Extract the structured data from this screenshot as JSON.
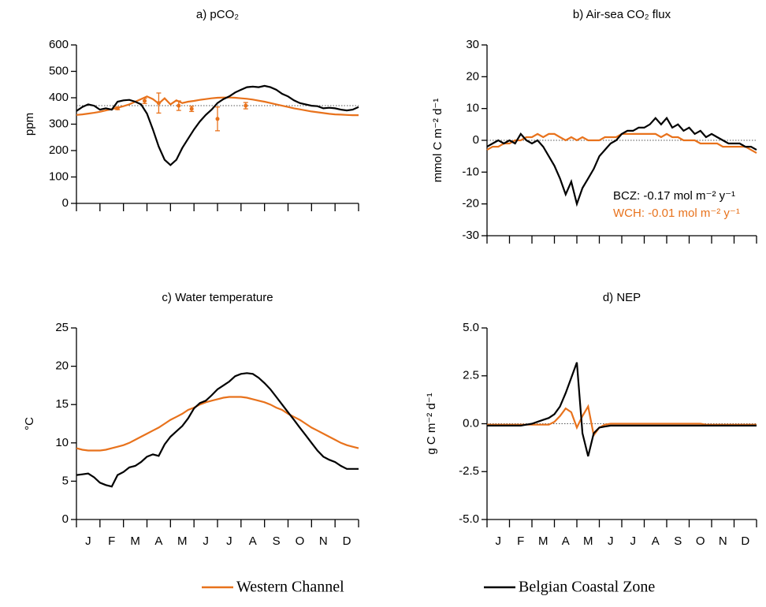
{
  "chart_data": [
    {
      "type": "line",
      "title": "a) pCO₂",
      "ylabel": "ppm",
      "x": [
        0,
        0.25,
        0.5,
        0.75,
        1,
        1.25,
        1.5,
        1.75,
        2,
        2.25,
        2.5,
        2.75,
        3,
        3.25,
        3.5,
        3.75,
        4,
        4.25,
        4.5,
        4.75,
        5,
        5.25,
        5.5,
        5.75,
        6,
        6.25,
        6.5,
        6.75,
        7,
        7.25,
        7.5,
        7.75,
        8,
        8.25,
        8.5,
        8.75,
        9,
        9.25,
        9.5,
        9.75,
        10,
        10.25,
        10.5,
        10.75,
        11,
        11.25,
        11.5,
        11.75,
        12
      ],
      "xlim": [
        0,
        12
      ],
      "xticks": [
        0,
        1,
        2,
        3,
        4,
        5,
        6,
        7,
        8,
        9,
        10,
        11,
        12
      ],
      "ylim": [
        0,
        600
      ],
      "yticks": [
        0,
        100,
        200,
        300,
        400,
        500,
        600
      ],
      "hline": 370,
      "series": [
        {
          "color": "#e8721c",
          "values": [
            335,
            337,
            340,
            343,
            347,
            352,
            357,
            362,
            368,
            375,
            385,
            395,
            405,
            395,
            378,
            398,
            375,
            390,
            380,
            385,
            388,
            392,
            395,
            398,
            400,
            401,
            401,
            400,
            398,
            396,
            393,
            389,
            385,
            380,
            375,
            370,
            365,
            360,
            356,
            352,
            348,
            345,
            342,
            339,
            337,
            336,
            335,
            334,
            334
          ]
        },
        {
          "color": "#000000",
          "values": [
            350,
            365,
            375,
            370,
            355,
            360,
            355,
            385,
            390,
            392,
            385,
            375,
            340,
            280,
            215,
            165,
            145,
            165,
            210,
            245,
            280,
            310,
            335,
            355,
            380,
            395,
            405,
            420,
            430,
            440,
            442,
            440,
            445,
            440,
            430,
            415,
            405,
            390,
            380,
            375,
            370,
            368,
            360,
            362,
            360,
            355,
            352,
            355,
            365
          ]
        }
      ],
      "error_points": {
        "color": "#e8721c",
        "x": [
          1.75,
          2.9,
          3.5,
          4.35,
          4.9,
          6.0,
          7.2
        ],
        "values": [
          360,
          388,
          380,
          370,
          358,
          320,
          370
        ],
        "errors": [
          5,
          10,
          38,
          18,
          10,
          45,
          12
        ]
      }
    },
    {
      "type": "line",
      "title": "b) Air-sea CO₂ flux",
      "ylabel": "mmol C m⁻² d⁻¹",
      "x": [
        0,
        0.25,
        0.5,
        0.75,
        1,
        1.25,
        1.5,
        1.75,
        2,
        2.25,
        2.5,
        2.75,
        3,
        3.25,
        3.5,
        3.75,
        4,
        4.25,
        4.5,
        4.75,
        5,
        5.25,
        5.5,
        5.75,
        6,
        6.25,
        6.5,
        6.75,
        7,
        7.25,
        7.5,
        7.75,
        8,
        8.25,
        8.5,
        8.75,
        9,
        9.25,
        9.5,
        9.75,
        10,
        10.25,
        10.5,
        10.75,
        11,
        11.25,
        11.5,
        11.75,
        12
      ],
      "xlim": [
        0,
        12
      ],
      "xticks": [
        0,
        1,
        2,
        3,
        4,
        5,
        6,
        7,
        8,
        9,
        10,
        11,
        12
      ],
      "ylim": [
        -30,
        30
      ],
      "yticks": [
        -30,
        -20,
        -10,
        0,
        10,
        20,
        30
      ],
      "hline": 0,
      "series": [
        {
          "color": "#e8721c",
          "values": [
            -3,
            -2,
            -2,
            -1,
            -1,
            0,
            0,
            1,
            1,
            2,
            1,
            2,
            2,
            1,
            0,
            1,
            0,
            1,
            0,
            0,
            0,
            1,
            1,
            1,
            2,
            2,
            2,
            2,
            2,
            2,
            2,
            1,
            2,
            1,
            1,
            0,
            0,
            0,
            -1,
            -1,
            -1,
            -1,
            -2,
            -2,
            -2,
            -2,
            -2,
            -3,
            -4
          ]
        },
        {
          "color": "#000000",
          "values": [
            -2,
            -1,
            0,
            -1,
            0,
            -1,
            2,
            0,
            -1,
            0,
            -2,
            -5,
            -8,
            -12,
            -17,
            -13,
            -20,
            -15,
            -12,
            -9,
            -5,
            -3,
            -1,
            0,
            2,
            3,
            3,
            4,
            4,
            5,
            7,
            5,
            7,
            4,
            5,
            3,
            4,
            2,
            3,
            1,
            2,
            1,
            0,
            -1,
            -1,
            -1,
            -2,
            -2,
            -3
          ]
        }
      ],
      "annotations": [
        {
          "text": "BCZ: -0.17 mol m⁻² y⁻¹",
          "color": "#000000"
        },
        {
          "text": "WCH: -0.01 mol m⁻² y⁻¹",
          "color": "#e8721c"
        }
      ]
    },
    {
      "type": "line",
      "title": "c) Water temperature",
      "ylabel": "°C",
      "x": [
        0,
        0.25,
        0.5,
        0.75,
        1,
        1.25,
        1.5,
        1.75,
        2,
        2.25,
        2.5,
        2.75,
        3,
        3.25,
        3.5,
        3.75,
        4,
        4.25,
        4.5,
        4.75,
        5,
        5.25,
        5.5,
        5.75,
        6,
        6.25,
        6.5,
        6.75,
        7,
        7.25,
        7.5,
        7.75,
        8,
        8.25,
        8.5,
        8.75,
        9,
        9.25,
        9.5,
        9.75,
        10,
        10.25,
        10.5,
        10.75,
        11,
        11.25,
        11.5,
        11.75,
        12
      ],
      "xlim": [
        0,
        12
      ],
      "xticks": [
        0,
        1,
        2,
        3,
        4,
        5,
        6,
        7,
        8,
        9,
        10,
        11,
        12
      ],
      "xtick_labels": [
        "J",
        "F",
        "M",
        "A",
        "M",
        "J",
        "J",
        "A",
        "S",
        "O",
        "N",
        "D"
      ],
      "ylim": [
        0,
        25
      ],
      "yticks": [
        0,
        5,
        10,
        15,
        20,
        25
      ],
      "series": [
        {
          "color": "#e8721c",
          "values": [
            9.3,
            9.1,
            9.0,
            9.0,
            9.0,
            9.1,
            9.3,
            9.5,
            9.7,
            10.0,
            10.4,
            10.8,
            11.2,
            11.6,
            12.0,
            12.5,
            13.0,
            13.4,
            13.8,
            14.3,
            14.6,
            15.0,
            15.3,
            15.5,
            15.7,
            15.9,
            16.0,
            16.0,
            16.0,
            15.9,
            15.7,
            15.5,
            15.3,
            15.0,
            14.6,
            14.3,
            13.8,
            13.4,
            13.0,
            12.5,
            12.0,
            11.6,
            11.2,
            10.8,
            10.4,
            10.0,
            9.7,
            9.5,
            9.3
          ]
        },
        {
          "color": "#000000",
          "values": [
            5.8,
            5.9,
            6.0,
            5.5,
            4.8,
            4.5,
            4.3,
            5.8,
            6.2,
            6.8,
            7.0,
            7.5,
            8.2,
            8.5,
            8.3,
            9.8,
            10.8,
            11.5,
            12.2,
            13.2,
            14.5,
            15.2,
            15.5,
            16.2,
            17,
            17.5,
            18,
            18.7,
            19,
            19.1,
            19.0,
            18.5,
            17.8,
            17,
            16,
            15,
            14,
            13,
            12,
            11,
            10,
            9,
            8.2,
            7.8,
            7.5,
            7.0,
            6.6,
            6.6,
            6.6
          ]
        }
      ]
    },
    {
      "type": "line",
      "title": "d) NEP",
      "ylabel": "g C m⁻² d⁻¹",
      "x": [
        0,
        0.25,
        0.5,
        0.75,
        1,
        1.25,
        1.5,
        1.75,
        2,
        2.25,
        2.5,
        2.75,
        3,
        3.25,
        3.5,
        3.75,
        4,
        4.25,
        4.5,
        4.75,
        5,
        5.25,
        5.5,
        5.75,
        6,
        6.25,
        6.5,
        6.75,
        7,
        7.25,
        7.5,
        7.75,
        8,
        8.25,
        8.5,
        8.75,
        9,
        9.25,
        9.5,
        9.75,
        10,
        10.25,
        10.5,
        10.75,
        11,
        11.25,
        11.5,
        11.75,
        12
      ],
      "xlim": [
        0,
        12
      ],
      "xticks": [
        0,
        1,
        2,
        3,
        4,
        5,
        6,
        7,
        8,
        9,
        10,
        11,
        12
      ],
      "xtick_labels": [
        "J",
        "F",
        "M",
        "A",
        "M",
        "J",
        "J",
        "A",
        "S",
        "O",
        "N",
        "D"
      ],
      "ylim": [
        -5,
        5
      ],
      "yticks": [
        {
          "value": -5,
          "label": "-5.0"
        },
        {
          "value": -2.5,
          "label": "-2.5"
        },
        {
          "value": 0,
          "label": "0.0"
        },
        {
          "value": 2.5,
          "label": "2.5"
        },
        {
          "value": 5,
          "label": "5.0"
        }
      ],
      "hline": 0,
      "series": [
        {
          "color": "#e8721c",
          "values": [
            -0.05,
            -0.05,
            -0.05,
            -0.05,
            -0.05,
            -0.05,
            -0.05,
            -0.05,
            -0.05,
            -0.05,
            -0.05,
            -0.05,
            0.1,
            0.4,
            0.8,
            0.6,
            -0.2,
            0.4,
            0.9,
            -0.6,
            -0.2,
            -0.05,
            0,
            0,
            0,
            0,
            0,
            0,
            0,
            0,
            0,
            0,
            0,
            0,
            0,
            0,
            0,
            0,
            0,
            -0.05,
            -0.05,
            -0.05,
            -0.05,
            -0.05,
            -0.05,
            -0.05,
            -0.05,
            -0.05,
            -0.05
          ]
        },
        {
          "color": "#000000",
          "values": [
            -0.1,
            -0.1,
            -0.1,
            -0.1,
            -0.1,
            -0.1,
            -0.1,
            -0.05,
            0,
            0.1,
            0.2,
            0.3,
            0.5,
            0.9,
            1.6,
            2.4,
            3.2,
            -0.5,
            -1.7,
            -0.5,
            -0.2,
            -0.15,
            -0.1,
            -0.1,
            -0.1,
            -0.1,
            -0.1,
            -0.1,
            -0.1,
            -0.1,
            -0.1,
            -0.1,
            -0.1,
            -0.1,
            -0.1,
            -0.1,
            -0.1,
            -0.1,
            -0.1,
            -0.1,
            -0.1,
            -0.1,
            -0.1,
            -0.1,
            -0.1,
            -0.1,
            -0.1,
            -0.1,
            -0.1
          ]
        }
      ]
    }
  ],
  "legend": [
    {
      "name": "Western Channel",
      "color": "#e8721c"
    },
    {
      "name": "Belgian Coastal Zone",
      "color": "#000000"
    }
  ]
}
